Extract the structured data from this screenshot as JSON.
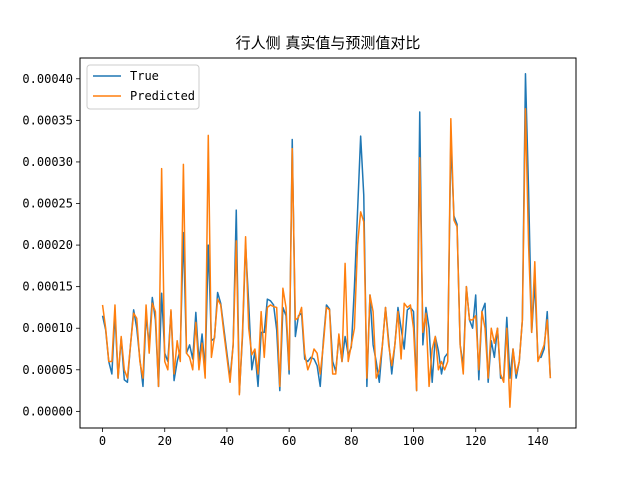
{
  "chart_data": {
    "type": "line",
    "title": "行人侧 真实值与预测值对比",
    "xlabel": "",
    "ylabel": "",
    "xlim": [
      -7.25,
      152.25
    ],
    "ylim": [
      -2e-05,
      0.000425
    ],
    "x_ticks": [
      0,
      20,
      40,
      60,
      80,
      100,
      120,
      140
    ],
    "y_ticks": [
      0.0,
      5e-05,
      0.0001,
      0.00015,
      0.0002,
      0.00025,
      0.0003,
      0.00035,
      0.0004
    ],
    "y_tick_labels": [
      "0.00000",
      "0.00005",
      "0.00010",
      "0.00015",
      "0.00020",
      "0.00025",
      "0.00030",
      "0.00035",
      "0.00040"
    ],
    "legend_position": "top-left",
    "grid": false,
    "series": [
      {
        "name": "True",
        "color": "#1f77b4",
        "values": [
          0.000115,
          9.8e-05,
          6e-05,
          4.5e-05,
          0.000118,
          4e-05,
          8.8e-05,
          3.8e-05,
          3.5e-05,
          8e-05,
          0.000122,
          0.0001,
          6.3e-05,
          3e-05,
          0.000115,
          8e-05,
          0.000137,
          0.00011,
          3e-05,
          0.000142,
          7e-05,
          6e-05,
          0.00012,
          3.7e-05,
          6e-05,
          7.5e-05,
          0.000215,
          7e-05,
          8e-05,
          6.3e-05,
          0.000119,
          6e-05,
          9.3e-05,
          5e-05,
          0.0002,
          8.5e-05,
          8.8e-05,
          0.000143,
          0.00013,
          0.0001,
          7e-05,
          4e-05,
          8e-05,
          0.000242,
          2.2e-05,
          9e-05,
          0.0002,
          0.00013,
          5e-05,
          7.2e-05,
          3e-05,
          9.5e-05,
          9.5e-05,
          0.000135,
          0.000133,
          0.000128,
          9.8e-05,
          2.5e-05,
          0.000125,
          0.000115,
          4.5e-05,
          0.000327,
          9e-05,
          0.000115,
          0.000118,
          6.3e-05,
          6e-05,
          6.5e-05,
          6.3e-05,
          5.5e-05,
          3e-05,
          8.5e-05,
          0.000128,
          0.000123,
          6e-05,
          4.8e-05,
          9e-05,
          6e-05,
          9e-05,
          6.8e-05,
          7.7e-05,
          0.00015,
          0.00024,
          0.000331,
          0.00026,
          3e-05,
          0.00014,
          8e-05,
          6e-05,
          3.5e-05,
          8e-05,
          0.000125,
          8.5e-05,
          4.5e-05,
          8e-05,
          0.000125,
          0.0001,
          7.5e-05,
          0.000122,
          0.000125,
          0.00012,
          2.5e-05,
          0.00036,
          8e-05,
          0.000125,
          0.0001,
          3.5e-05,
          9e-05,
          7.3e-05,
          4.5e-05,
          6.5e-05,
          7e-05,
          0.000325,
          0.000235,
          0.000225,
          8e-05,
          5.5e-05,
          0.00015,
          0.00011,
          0.0001,
          0.00014,
          3.8e-05,
          0.00012,
          0.00013,
          3.5e-05,
          8.5e-05,
          6.5e-05,
          0.0001,
          4e-05,
          4e-05,
          0.000113,
          4e-05,
          7.5e-05,
          4e-05,
          6e-05,
          0.00011,
          0.000406,
          0.000265,
          9.5e-05,
          0.000155,
          6.5e-05,
          6.5e-05,
          7.5e-05,
          0.00012,
          4e-05
        ]
      },
      {
        "name": "Predicted",
        "color": "#ff7f0e",
        "values": [
          0.000128,
          0.0001,
          6e-05,
          6e-05,
          0.000128,
          4e-05,
          9e-05,
          5e-05,
          4e-05,
          8e-05,
          0.000118,
          0.000112,
          6e-05,
          4e-05,
          0.000128,
          7e-05,
          0.00013,
          0.00012,
          3e-05,
          0.000292,
          6e-05,
          5e-05,
          0.000122,
          4.5e-05,
          8.5e-05,
          6e-05,
          0.000297,
          7e-05,
          6.5e-05,
          5e-05,
          0.000107,
          5e-05,
          8.2e-05,
          4e-05,
          0.000332,
          6.5e-05,
          9e-05,
          0.000135,
          0.000128,
          9.5e-05,
          6.5e-05,
          3.5e-05,
          8e-05,
          0.000205,
          2e-05,
          9.5e-05,
          0.00021,
          0.0001,
          6.8e-05,
          7.5e-05,
          4.5e-05,
          0.00012,
          6.5e-05,
          0.000125,
          0.000128,
          0.000126,
          0.000125,
          3e-05,
          0.000148,
          0.000125,
          5e-05,
          0.000316,
          0.00011,
          0.000113,
          0.000125,
          7e-05,
          5e-05,
          6e-05,
          7.5e-05,
          7e-05,
          4.5e-05,
          8e-05,
          0.000125,
          0.000122,
          4.5e-05,
          4.5e-05,
          9.3e-05,
          6e-05,
          0.000178,
          6e-05,
          8e-05,
          0.0001,
          0.0002,
          0.00024,
          0.000228,
          4e-05,
          0.00014,
          0.00012,
          4e-05,
          5e-05,
          8e-05,
          0.000125,
          8e-05,
          5.5e-05,
          8e-05,
          0.00012,
          6.3e-05,
          0.00013,
          0.000125,
          0.000128,
          0.0001,
          2.5e-05,
          0.000305,
          9.5e-05,
          0.000118,
          3e-05,
          7.5e-05,
          9e-05,
          5e-05,
          6e-05,
          5e-05,
          6e-05,
          0.000352,
          0.00023,
          0.000222,
          8e-05,
          4.5e-05,
          0.00015,
          0.00011,
          0.00011,
          0.000115,
          5e-05,
          0.00012,
          0.0001,
          4e-05,
          0.0001,
          8.2e-05,
          0.0001,
          4.5e-05,
          3.5e-05,
          0.0001,
          5e-06,
          7.5e-05,
          4.5e-05,
          6e-05,
          0.00011,
          0.000364,
          0.0002,
          9.5e-05,
          0.00018,
          6e-05,
          7e-05,
          8e-05,
          0.00011,
          4e-05
        ]
      }
    ]
  }
}
